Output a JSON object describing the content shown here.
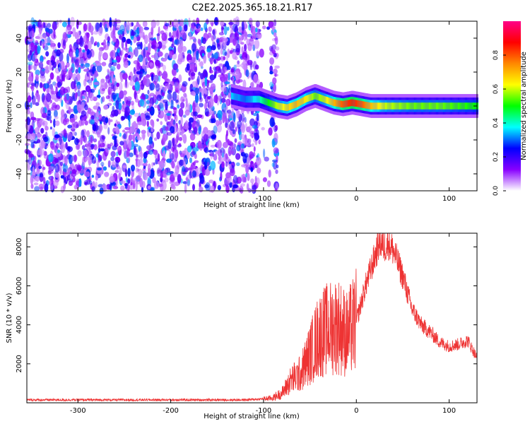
{
  "figure": {
    "title": "C2E2.2025.365.18.21.R17"
  },
  "chart_data": [
    {
      "type": "heatmap",
      "title": "C2E2.2025.365.18.21.R17",
      "xlabel": "Height of straight line (km)",
      "ylabel": "Frequency (Hz)",
      "xlim": [
        -355,
        130
      ],
      "ylim": [
        -50,
        50
      ],
      "x_ticks": [
        -300,
        -200,
        -100,
        0,
        100
      ],
      "y_ticks": [
        -40,
        -20,
        0,
        20,
        40
      ],
      "colorbar": {
        "label": "Normalized spectral amplitude",
        "range": [
          0,
          1
        ],
        "ticks": [
          "0.0",
          "0.2",
          "0.4",
          "0.6",
          "0.8"
        ],
        "colors": [
          "#ffffff",
          "#8800ff",
          "#0000ff",
          "#00ffff",
          "#00ff00",
          "#ffff00",
          "#ff8800",
          "#ff0000",
          "#ff0088"
        ]
      },
      "noise_region_x": [
        -355,
        -85
      ],
      "ridge": {
        "x": [
          -135,
          -120,
          -105,
          -95,
          -85,
          -75,
          -65,
          -55,
          -45,
          -35,
          -25,
          -15,
          -5,
          5,
          15,
          30,
          60,
          90,
          130
        ],
        "freq": [
          6,
          4,
          4,
          2,
          0,
          -1,
          1,
          4,
          6,
          4,
          2,
          1,
          2,
          1,
          0,
          0,
          0,
          0,
          0
        ],
        "amp": [
          0.35,
          0.3,
          0.4,
          0.5,
          0.6,
          0.65,
          0.7,
          0.65,
          0.55,
          0.6,
          0.7,
          0.8,
          0.85,
          0.8,
          0.7,
          0.6,
          0.55,
          0.55,
          0.5
        ]
      }
    },
    {
      "type": "line",
      "xlabel": "Height of straight line (km)",
      "ylabel": "SNR (10 * v/v)",
      "xlim": [
        -355,
        130
      ],
      "ylim": [
        0,
        8700
      ],
      "x_ticks": [
        -300,
        -200,
        -100,
        0,
        100
      ],
      "y_ticks": [
        2000,
        4000,
        6000,
        8000
      ],
      "color": "#ee3333",
      "series": [
        {
          "x": [
            -355,
            -300,
            -200,
            -120,
            -100,
            -90,
            -80,
            -70,
            -60,
            -50,
            -40,
            -30,
            -20,
            -10,
            0,
            10,
            20,
            25,
            30,
            35,
            40,
            50,
            60,
            70,
            80,
            90,
            100,
            110,
            120,
            130
          ],
          "values": [
            150,
            150,
            150,
            150,
            200,
            250,
            500,
            1200,
            1500,
            2500,
            3500,
            3800,
            4000,
            3500,
            4200,
            6000,
            7500,
            8300,
            8000,
            8200,
            7800,
            6500,
            4800,
            4000,
            3600,
            3100,
            2900,
            3000,
            3200,
            2300
          ]
        }
      ]
    }
  ]
}
